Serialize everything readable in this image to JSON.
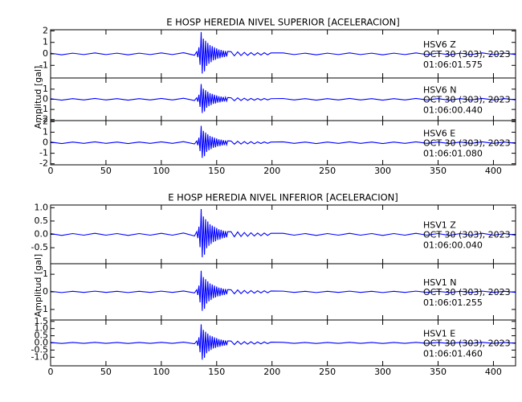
{
  "chart_data": [
    {
      "type": "line",
      "title": "E HOSP HEREDIA NIVEL SUPERIOR [ACELERACION]",
      "ylabel": "Amplitud [gal]",
      "xlim": [
        0,
        420
      ],
      "xticks": [
        0,
        50,
        100,
        150,
        200,
        250,
        300,
        350,
        400
      ],
      "x": [
        0,
        10,
        20,
        30,
        40,
        50,
        60,
        70,
        80,
        90,
        100,
        110,
        120,
        130,
        132,
        133,
        134,
        135,
        136,
        137,
        138,
        139,
        140,
        141,
        142,
        143,
        144,
        145,
        146,
        147,
        148,
        149,
        150,
        151,
        152,
        153,
        154,
        155,
        156,
        157,
        158,
        159,
        160,
        163,
        166,
        169,
        172,
        175,
        178,
        181,
        184,
        187,
        190,
        193,
        196,
        199,
        210,
        220,
        230,
        240,
        250,
        260,
        270,
        280,
        290,
        300,
        310,
        320,
        330,
        340,
        350,
        360,
        370,
        380,
        390,
        400,
        410,
        420
      ],
      "series": [
        {
          "name": "HSV6   Z",
          "date": "OCT 30 (303), 2023",
          "time": "01:06:01.575",
          "color": "#0000ff",
          "ylim": [
            -2.1,
            2.1
          ],
          "yticks": [
            -1,
            0,
            1,
            2
          ],
          "values": [
            0.06,
            -0.08,
            0.06,
            -0.06,
            0.08,
            -0.06,
            0.06,
            -0.08,
            0.06,
            -0.06,
            0.08,
            -0.06,
            0.1,
            -0.12,
            0.19,
            -0.29,
            0.57,
            -0.95,
            1.9,
            -1.71,
            1.33,
            -1.52,
            1.14,
            -1.05,
            0.95,
            -0.86,
            0.76,
            -0.72,
            0.67,
            -0.57,
            0.57,
            -0.51,
            0.48,
            -0.42,
            0.38,
            -0.38,
            0.34,
            -0.3,
            0.29,
            -0.27,
            0.25,
            -0.23,
            0.21,
            0.19,
            -0.17,
            0.17,
            -0.15,
            0.13,
            -0.13,
            0.11,
            -0.11,
            0.1,
            -0.1,
            0.1,
            -0.08,
            0.08,
            0.08,
            -0.06,
            0.06,
            -0.08,
            0.06,
            -0.06,
            0.08,
            -0.06,
            0.06,
            -0.08,
            0.06,
            -0.06,
            0.08,
            -0.06,
            0.06,
            -0.08,
            0.06,
            -0.06,
            0.08,
            -0.06,
            0.06,
            -0.06
          ]
        },
        {
          "name": "HSV6   N",
          "date": "OCT 30 (303), 2023",
          "time": "01:06:00.440",
          "color": "#0000ff",
          "ylim": [
            -2.1,
            2.1
          ],
          "yticks": [
            -2,
            -1,
            0,
            1
          ],
          "values": [
            0.06,
            -0.08,
            0.06,
            -0.06,
            0.08,
            -0.06,
            0.06,
            -0.08,
            0.06,
            -0.06,
            0.08,
            -0.06,
            0.1,
            -0.12,
            0.15,
            -0.23,
            0.45,
            -0.75,
            1.5,
            -1.35,
            1.05,
            -1.2,
            0.9,
            -0.83,
            0.75,
            -0.68,
            0.6,
            -0.57,
            0.53,
            -0.45,
            0.45,
            -0.41,
            0.38,
            -0.33,
            0.3,
            -0.3,
            0.27,
            -0.24,
            0.23,
            -0.21,
            0.2,
            -0.18,
            0.17,
            0.15,
            -0.14,
            0.14,
            -0.12,
            0.11,
            -0.11,
            0.09,
            -0.09,
            0.08,
            -0.08,
            0.08,
            -0.06,
            0.06,
            0.08,
            -0.06,
            0.06,
            -0.08,
            0.06,
            -0.06,
            0.08,
            -0.06,
            0.06,
            -0.08,
            0.06,
            -0.06,
            0.08,
            -0.06,
            0.06,
            -0.08,
            0.06,
            -0.06,
            0.08,
            -0.06,
            0.06,
            -0.06
          ]
        },
        {
          "name": "HSV6   E",
          "date": "OCT 30 (303), 2023",
          "time": "01:06:01.080",
          "color": "#0000ff",
          "ylim": [
            -2.1,
            2.1
          ],
          "yticks": [
            -2,
            -1,
            0,
            1,
            2
          ],
          "values": [
            0.06,
            -0.08,
            0.06,
            -0.06,
            0.08,
            -0.06,
            0.06,
            -0.08,
            0.06,
            -0.06,
            0.08,
            -0.06,
            0.1,
            -0.12,
            0.16,
            -0.24,
            0.48,
            -0.8,
            1.6,
            -1.44,
            1.12,
            -1.28,
            0.96,
            -0.88,
            0.8,
            -0.72,
            0.64,
            -0.61,
            0.56,
            -0.48,
            0.48,
            -0.43,
            0.4,
            -0.35,
            0.32,
            -0.32,
            0.29,
            -0.26,
            0.24,
            -0.22,
            0.21,
            -0.19,
            0.18,
            0.16,
            -0.14,
            0.14,
            -0.13,
            0.11,
            -0.11,
            0.1,
            -0.1,
            0.08,
            -0.08,
            0.08,
            -0.06,
            0.06,
            0.08,
            -0.06,
            0.06,
            -0.08,
            0.06,
            -0.06,
            0.08,
            -0.06,
            0.06,
            -0.08,
            0.06,
            -0.06,
            0.08,
            -0.06,
            0.06,
            -0.08,
            0.06,
            -0.06,
            0.08,
            -0.06,
            0.06,
            -0.06
          ]
        }
      ]
    },
    {
      "type": "line",
      "title": "E HOSP HEREDIA NIVEL INFERIOR [ACELERACION]",
      "ylabel": "Amplitud [gal]",
      "xlim": [
        0,
        420
      ],
      "xticks": [
        0,
        50,
        100,
        150,
        200,
        250,
        300,
        350,
        400
      ],
      "x": [
        0,
        10,
        20,
        30,
        40,
        50,
        60,
        70,
        80,
        90,
        100,
        110,
        120,
        130,
        132,
        133,
        134,
        135,
        136,
        137,
        138,
        139,
        140,
        141,
        142,
        143,
        144,
        145,
        146,
        147,
        148,
        149,
        150,
        151,
        152,
        153,
        154,
        155,
        156,
        157,
        158,
        159,
        160,
        163,
        166,
        169,
        172,
        175,
        178,
        181,
        184,
        187,
        190,
        193,
        196,
        199,
        210,
        220,
        230,
        240,
        250,
        260,
        270,
        280,
        290,
        300,
        310,
        320,
        330,
        340,
        350,
        360,
        370,
        380,
        390,
        400,
        410,
        420
      ],
      "series": [
        {
          "name": "HSV1   Z",
          "date": "OCT 30 (303), 2023",
          "time": "01:06:00.040",
          "color": "#0000ff",
          "ylim": [
            -1.1,
            1.1
          ],
          "yticks": [
            {
              "value": -0.5,
              "label": "-0.5"
            },
            {
              "value": 0,
              "label": "0.0"
            },
            0.5,
            {
              "value": 1,
              "label": "1.0"
            }
          ],
          "values": [
            0.03,
            -0.04,
            0.03,
            -0.03,
            0.04,
            -0.03,
            0.03,
            -0.04,
            0.03,
            -0.03,
            0.04,
            -0.03,
            0.05,
            -0.06,
            0.1,
            -0.14,
            0.29,
            -0.48,
            0.95,
            -0.86,
            0.67,
            -0.76,
            0.57,
            -0.52,
            0.48,
            -0.43,
            0.38,
            -0.36,
            0.33,
            -0.29,
            0.29,
            -0.26,
            0.24,
            -0.21,
            0.19,
            -0.19,
            0.17,
            -0.15,
            0.14,
            -0.13,
            0.12,
            -0.11,
            0.1,
            0.1,
            -0.09,
            0.09,
            -0.08,
            0.07,
            -0.07,
            0.06,
            -0.06,
            0.05,
            -0.05,
            0.05,
            -0.04,
            0.04,
            0.04,
            -0.03,
            0.03,
            -0.04,
            0.03,
            -0.03,
            0.04,
            -0.03,
            0.03,
            -0.04,
            0.03,
            -0.03,
            0.04,
            -0.03,
            0.03,
            -0.04,
            0.03,
            -0.03,
            0.04,
            -0.03,
            0.03,
            -0.03
          ]
        },
        {
          "name": "HSV1   N",
          "date": "OCT 30 (303), 2023",
          "time": "01:06:01.255",
          "color": "#0000ff",
          "ylim": [
            -1.6,
            1.6
          ],
          "yticks": [
            -1,
            0,
            1
          ],
          "values": [
            0.03,
            -0.04,
            0.03,
            -0.03,
            0.04,
            -0.03,
            0.03,
            -0.04,
            0.03,
            -0.03,
            0.04,
            -0.03,
            0.05,
            -0.06,
            0.12,
            -0.18,
            0.36,
            -0.6,
            1.2,
            -1.08,
            0.84,
            -0.96,
            0.72,
            -0.66,
            0.6,
            -0.54,
            0.48,
            -0.46,
            0.42,
            -0.36,
            0.36,
            -0.32,
            0.3,
            -0.26,
            0.24,
            -0.24,
            0.22,
            -0.19,
            0.18,
            -0.17,
            0.16,
            -0.14,
            0.13,
            0.12,
            -0.11,
            0.11,
            -0.1,
            0.08,
            -0.08,
            0.07,
            -0.07,
            0.06,
            -0.06,
            0.06,
            -0.05,
            0.05,
            0.04,
            -0.03,
            0.03,
            -0.04,
            0.03,
            -0.03,
            0.04,
            -0.03,
            0.03,
            -0.04,
            0.03,
            -0.03,
            0.04,
            -0.03,
            0.03,
            -0.04,
            0.03,
            -0.03,
            0.04,
            -0.03,
            0.03,
            -0.03
          ]
        },
        {
          "name": "HSV1   E",
          "date": "OCT 30 (303), 2023",
          "time": "01:06:01.460",
          "color": "#0000ff",
          "ylim": [
            -1.6,
            1.6
          ],
          "yticks": [
            {
              "value": -1,
              "label": "-1.0"
            },
            -0.5,
            {
              "value": 0,
              "label": "0.0"
            },
            0.5,
            {
              "value": 1,
              "label": "1.0"
            },
            1.5
          ],
          "values": [
            0.03,
            -0.04,
            0.03,
            -0.03,
            0.04,
            -0.03,
            0.03,
            -0.04,
            0.03,
            -0.03,
            0.04,
            -0.03,
            0.05,
            -0.06,
            0.13,
            -0.2,
            0.39,
            -0.65,
            1.3,
            -1.17,
            0.91,
            -1.04,
            0.78,
            -0.72,
            0.65,
            -0.59,
            0.52,
            -0.49,
            0.46,
            -0.39,
            0.39,
            -0.35,
            0.33,
            -0.29,
            0.26,
            -0.26,
            0.23,
            -0.21,
            0.2,
            -0.18,
            0.17,
            -0.16,
            0.14,
            0.13,
            -0.12,
            0.12,
            -0.1,
            0.09,
            -0.09,
            0.08,
            -0.08,
            0.07,
            -0.07,
            0.07,
            -0.05,
            0.05,
            0.04,
            -0.03,
            0.03,
            -0.04,
            0.03,
            -0.03,
            0.04,
            -0.03,
            0.03,
            -0.04,
            0.03,
            -0.03,
            0.04,
            -0.03,
            0.03,
            -0.04,
            0.03,
            -0.03,
            0.04,
            -0.03,
            0.03,
            -0.03
          ]
        }
      ]
    }
  ]
}
